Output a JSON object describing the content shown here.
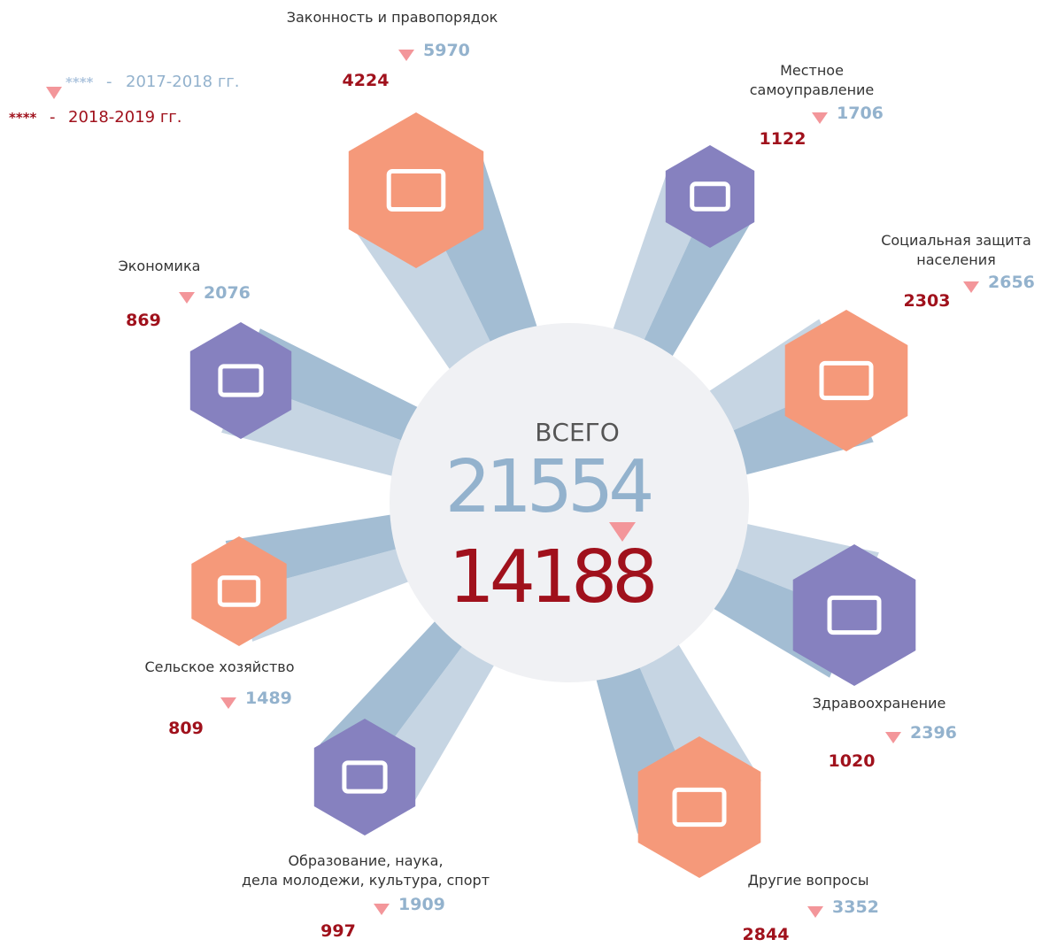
{
  "legend": [
    {
      "marker": "****",
      "dash": "-",
      "label": "2017-2018 гг."
    },
    {
      "marker": "****",
      "dash": "-",
      "label": "2018-2019 гг."
    }
  ],
  "center": {
    "label": "ВСЕГО",
    "previous": 21554,
    "current": 14188
  },
  "categories": [
    {
      "name": [
        "Законность и правопорядок"
      ],
      "previous": 5970,
      "current": 4224,
      "color": "#f5997a"
    },
    {
      "name": [
        "Местное",
        "самоуправление"
      ],
      "previous": 1706,
      "current": 1122,
      "color": "#8681bf"
    },
    {
      "name": [
        "Социальная защита",
        "населения"
      ],
      "previous": 2656,
      "current": 2303,
      "color": "#f5997a"
    },
    {
      "name": [
        "Здравоохранение"
      ],
      "previous": 2396,
      "current": 1020,
      "color": "#8681bf"
    },
    {
      "name": [
        "Другие вопросы"
      ],
      "previous": 3352,
      "current": 2844,
      "color": "#f5997a"
    },
    {
      "name": [
        "Образование, наука,",
        "дела молодежи, культура, спорт"
      ],
      "previous": 1909,
      "current": 997,
      "color": "#8681bf"
    },
    {
      "name": [
        "Сельское хозяйство"
      ],
      "previous": 1489,
      "current": 809,
      "color": "#f5997a"
    },
    {
      "name": [
        "Экономика"
      ],
      "previous": 2076,
      "current": 869,
      "color": "#8681bf"
    }
  ]
}
